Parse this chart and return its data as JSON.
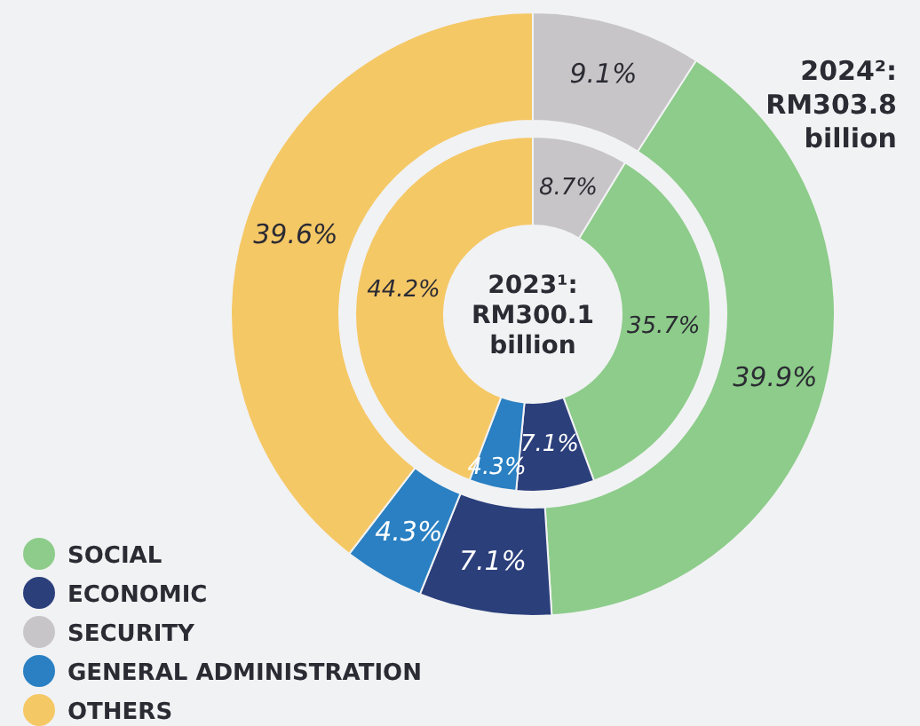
{
  "chart_data": {
    "type": "donut",
    "categories": [
      "SOCIAL",
      "ECONOMIC",
      "SECURITY",
      "GENERAL ADMINISTRATION",
      "OTHERS"
    ],
    "colors": [
      "#8dcc8a",
      "#2b3f7b",
      "#c8c5c8",
      "#2a80c2",
      "#f5c866"
    ],
    "series": [
      {
        "name": "2023¹: RM300.1 billion",
        "values": [
          35.7,
          7.1,
          8.7,
          4.3,
          44.2
        ],
        "value_labels": [
          "35.7%",
          "7.1%",
          "8.7%",
          "4.3%",
          "44.2%"
        ]
      },
      {
        "name": "2024²: RM303.8 billion",
        "values": [
          39.9,
          7.1,
          9.1,
          4.3,
          39.6
        ],
        "value_labels": [
          "39.9%",
          "7.1%",
          "9.1%",
          "4.3%",
          "39.6%"
        ]
      }
    ],
    "legend": "bottom left"
  }
}
